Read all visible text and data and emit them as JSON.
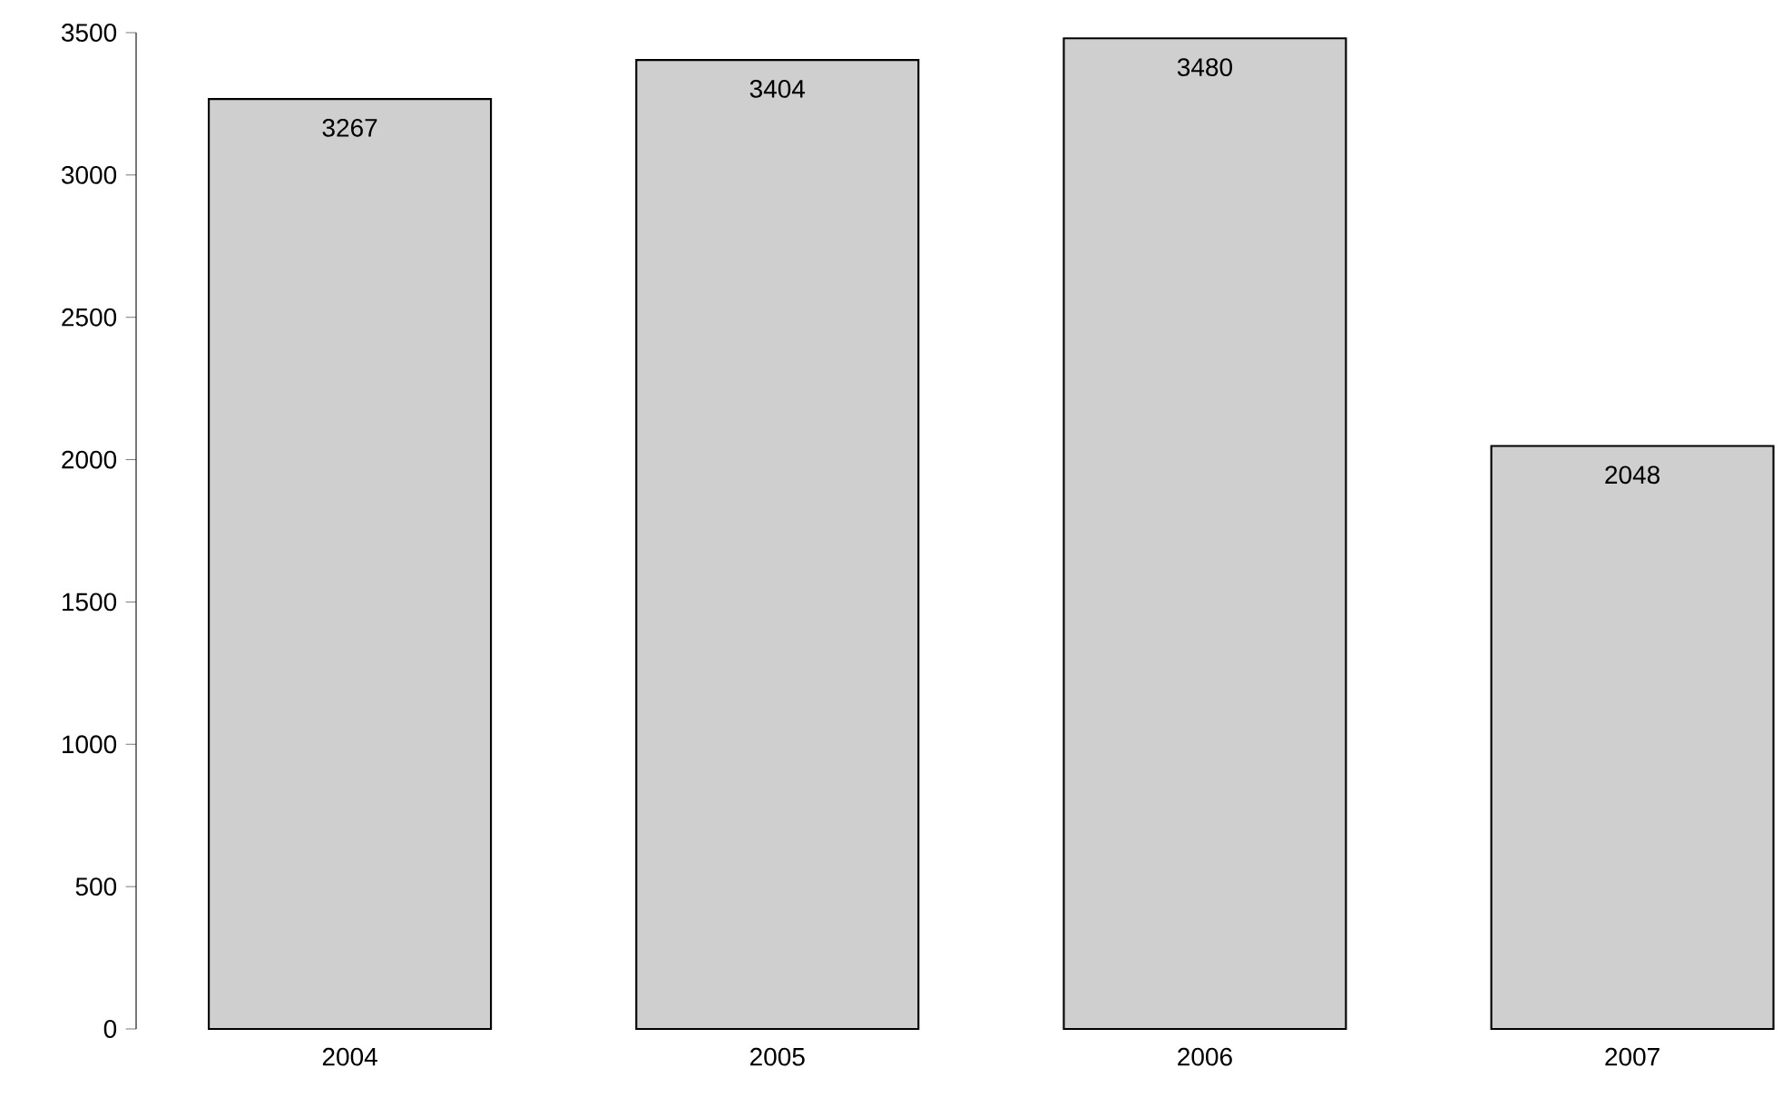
{
  "chart_data": {
    "type": "bar",
    "categories": [
      "2004",
      "2005",
      "2006",
      "2007"
    ],
    "values": [
      3267,
      3404,
      3480,
      2048
    ],
    "color": "#cfcfcf",
    "ylim": [
      0,
      3500
    ],
    "yticks": [
      0,
      500,
      1000,
      1500,
      2000,
      2500,
      3000,
      3500
    ],
    "data_labels": true,
    "grid": false
  }
}
